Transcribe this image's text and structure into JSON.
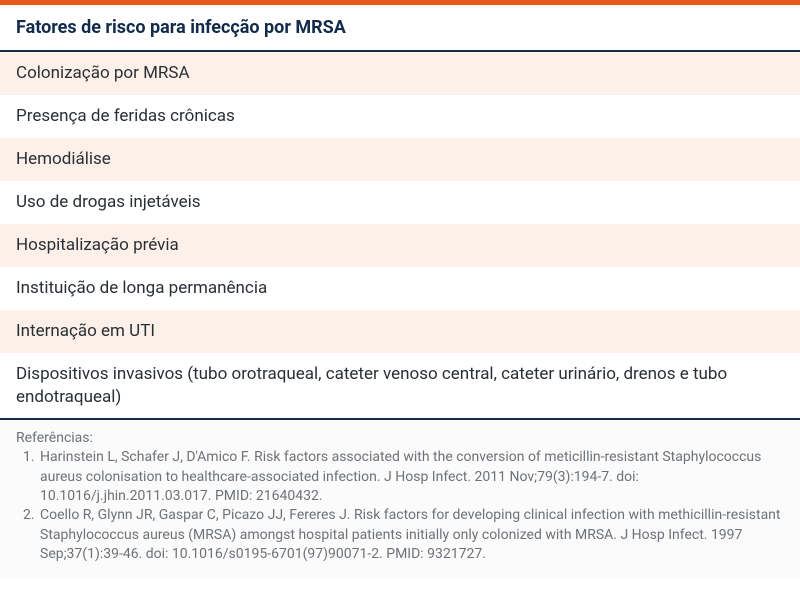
{
  "colors": {
    "accent_orange": "#e85a1a",
    "header_text": "#122b4a",
    "body_text": "#2a2f36",
    "row_alt_bg": "#fcf0e9",
    "row_bg": "#ffffff",
    "border_dark": "#122b4a",
    "refs_text": "#6d7278",
    "refs_bg": "#fbfbfb"
  },
  "typography": {
    "header_fontsize": 18,
    "row_fontsize": 17,
    "refs_fontsize": 14
  },
  "table": {
    "title": "Fatores de risco para infecção por MRSA",
    "rows": [
      "Colonização por MRSA",
      "Presença de feridas crônicas",
      "Hemodiálise",
      "Uso de drogas injetáveis",
      "Hospitalização prévia",
      "Instituição de longa permanência",
      "Internação em UTI",
      "Dispositivos invasivos (tubo orotraqueal, cateter venoso central, cateter urinário, drenos e tubo endotraqueal)"
    ]
  },
  "references": {
    "label": "Referências:",
    "items": [
      "Harinstein L, Schafer J, D'Amico F. Risk factors associated with the conversion of meticillin-resistant Staphylococcus aureus colonisation to healthcare-associated infection. J Hosp Infect. 2011 Nov;79(3):194-7. doi: 10.1016/j.jhin.2011.03.017. PMID: 21640432.",
      "Coello R, Glynn JR, Gaspar C, Picazo JJ, Fereres J. Risk factors for developing clinical infection with methicillin-resistant Staphylococcus aureus (MRSA) amongst hospital patients initially only colonized with MRSA. J Hosp Infect. 1997 Sep;37(1):39-46. doi: 10.1016/s0195-6701(97)90071-2. PMID: 9321727."
    ]
  }
}
